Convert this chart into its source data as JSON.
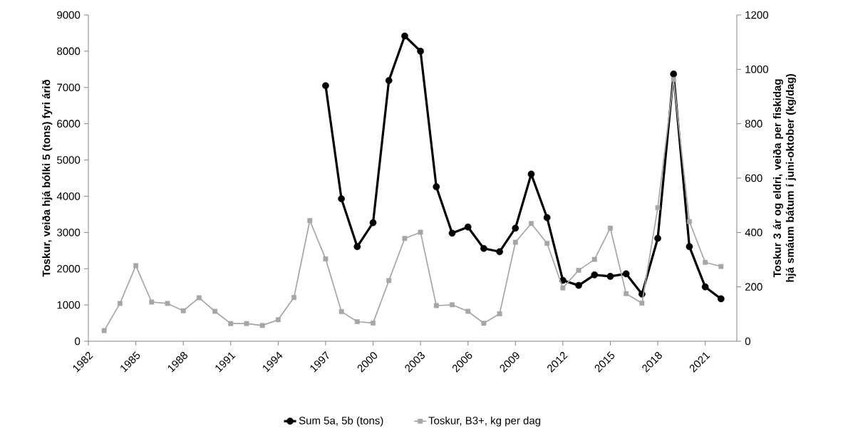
{
  "chart_data": {
    "type": "line",
    "ylabel": "Toskur, veiða hjá bólki 5 (tons) fyri árið",
    "y2label": "Toskur 3 ár og eldri, veiða per fiskidag hjá smáum bátum í juni-oktober (kg/dag)",
    "xlim": [
      1982,
      2023
    ],
    "xticks": [
      1982,
      1985,
      1988,
      1991,
      1994,
      1997,
      2000,
      2003,
      2006,
      2009,
      2012,
      2015,
      2018,
      2021
    ],
    "ylim": [
      0,
      9000
    ],
    "yticks": [
      0,
      1000,
      2000,
      3000,
      4000,
      5000,
      6000,
      7000,
      8000,
      9000
    ],
    "y2lim": [
      0,
      1200
    ],
    "y2ticks": [
      0,
      200,
      400,
      600,
      800,
      1000,
      1200
    ],
    "legend": "bottom",
    "grid": false,
    "series": [
      {
        "name": "Sum 5a, 5b (tons)",
        "color": "#000000",
        "marker": "circle",
        "x": [
          1997,
          1998,
          1999,
          2000,
          2001,
          2002,
          2003,
          2004,
          2005,
          2006,
          2007,
          2008,
          2009,
          2010,
          2011,
          2012,
          2013,
          2014,
          2015,
          2016,
          2017,
          2018,
          2019,
          2020,
          2021,
          2022
        ],
        "values": [
          7050,
          3930,
          2610,
          3270,
          7190,
          8420,
          8000,
          4260,
          2980,
          3150,
          2560,
          2470,
          3120,
          4610,
          3410,
          1680,
          1540,
          1830,
          1790,
          1860,
          1300,
          2840,
          7370,
          2610,
          1500,
          1170
        ]
      },
      {
        "name": "Toskur, B3+, kg per dag",
        "color": "#a6a6a6",
        "marker": "square",
        "axis": "y2",
        "x": [
          1983,
          1984,
          1985,
          1986,
          1987,
          1988,
          1989,
          1990,
          1991,
          1992,
          1993,
          1994,
          1995,
          1996,
          1997,
          1998,
          1999,
          2000,
          2001,
          2002,
          2003,
          2004,
          2005,
          2006,
          2007,
          2008,
          2009,
          2010,
          2011,
          2012,
          2013,
          2014,
          2015,
          2016,
          2017,
          2018,
          2019,
          2020,
          2021,
          2022
        ],
        "values": [
          39,
          139,
          278,
          144,
          139,
          112,
          160,
          110,
          65,
          65,
          58,
          79,
          161,
          444,
          303,
          109,
          72,
          67,
          223,
          378,
          401,
          131,
          134,
          110,
          66,
          101,
          364,
          433,
          360,
          196,
          261,
          301,
          416,
          175,
          140,
          491,
          963,
          440,
          290,
          275
        ]
      }
    ]
  }
}
